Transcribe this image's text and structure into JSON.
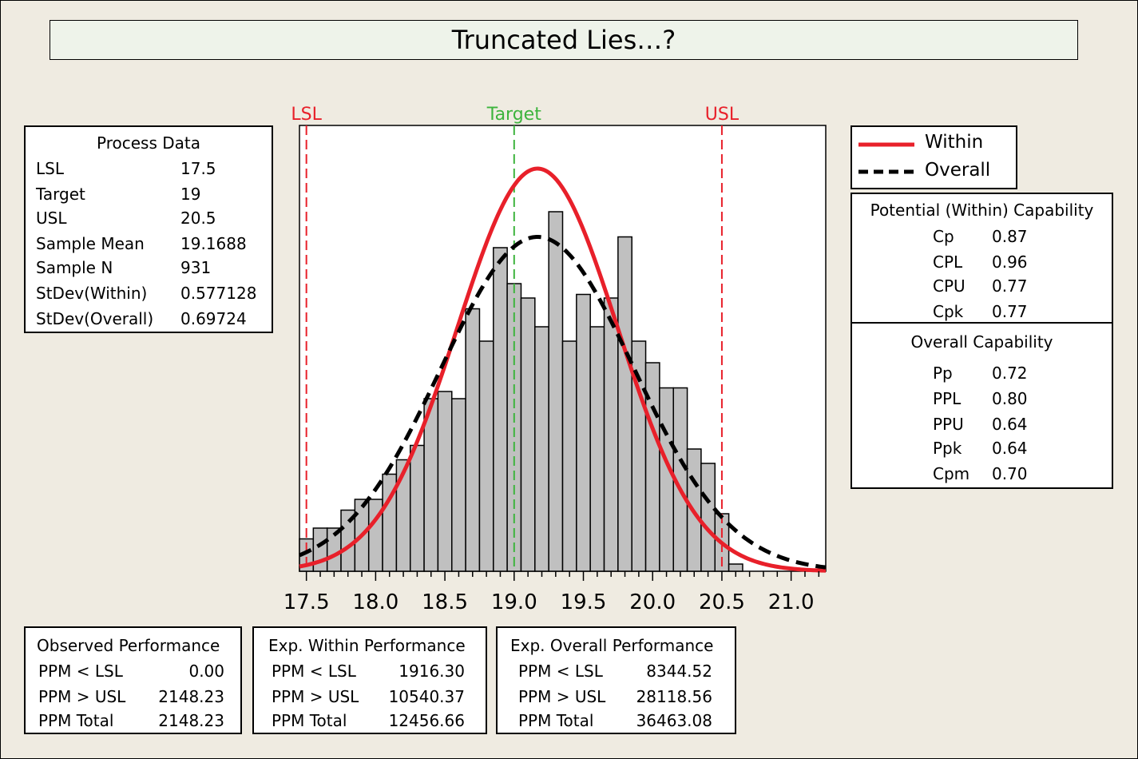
{
  "title": "Truncated Lies…?",
  "process_data": {
    "header": "Process Data",
    "rows": [
      {
        "label": "LSL",
        "value": "17.5"
      },
      {
        "label": "Target",
        "value": "19"
      },
      {
        "label": "USL",
        "value": "20.5"
      },
      {
        "label": "Sample Mean",
        "value": "19.1688"
      },
      {
        "label": "Sample N",
        "value": "931"
      },
      {
        "label": "StDev(Within)",
        "value": "0.577128"
      },
      {
        "label": "StDev(Overall)",
        "value": "0.69724"
      }
    ]
  },
  "legend": {
    "within": "Within",
    "overall": "Overall"
  },
  "potential": {
    "header": "Potential (Within) Capability",
    "rows": [
      {
        "label": "Cp",
        "value": "0.87"
      },
      {
        "label": "CPL",
        "value": "0.96"
      },
      {
        "label": "CPU",
        "value": "0.77"
      },
      {
        "label": "Cpk",
        "value": "0.77"
      }
    ]
  },
  "overall_cap": {
    "header": "Overall Capability",
    "rows": [
      {
        "label": "Pp",
        "value": "0.72"
      },
      {
        "label": "PPL",
        "value": "0.80"
      },
      {
        "label": "PPU",
        "value": "0.64"
      },
      {
        "label": "Ppk",
        "value": "0.64"
      },
      {
        "label": "Cpm",
        "value": "0.70"
      }
    ]
  },
  "observed": {
    "header": "Observed Performance",
    "rows": [
      {
        "label": "PPM < LSL",
        "value": "0.00"
      },
      {
        "label": "PPM > USL",
        "value": "2148.23"
      },
      {
        "label": "PPM Total",
        "value": "2148.23"
      }
    ]
  },
  "exp_within": {
    "header": "Exp. Within Performance",
    "rows": [
      {
        "label": "PPM < LSL",
        "value": "1916.30"
      },
      {
        "label": "PPM > USL",
        "value": "10540.37"
      },
      {
        "label": "PPM Total",
        "value": "12456.66"
      }
    ]
  },
  "exp_overall": {
    "header": "Exp. Overall Performance",
    "rows": [
      {
        "label": "PPM < LSL",
        "value": "8344.52"
      },
      {
        "label": "PPM > USL",
        "value": "28118.56"
      },
      {
        "label": "PPM Total",
        "value": "36463.08"
      }
    ]
  },
  "colors": {
    "spec_line": "#e8202a",
    "target_line": "#3db43d",
    "within_curve": "#e8202a",
    "overall_curve": "#000000",
    "bar_fill": "#c0c0c0"
  },
  "chart_data": {
    "type": "bar",
    "subtype": "histogram",
    "bin_width": 0.1,
    "xlim": [
      17.45,
      21.25
    ],
    "ylim": [
      0,
      1
    ],
    "x_ticks": [
      17.5,
      18.0,
      18.5,
      19.0,
      19.5,
      20.0,
      20.5,
      21.0
    ],
    "x_tick_labels": [
      "17.5",
      "18.0",
      "18.5",
      "19.0",
      "19.5",
      "20.0",
      "20.5",
      "21.0"
    ],
    "bin_starts": [
      17.45,
      17.55,
      17.65,
      17.75,
      17.85,
      17.95,
      18.05,
      18.15,
      18.25,
      18.35,
      18.45,
      18.55,
      18.65,
      18.75,
      18.85,
      18.95,
      19.05,
      19.15,
      19.25,
      19.35,
      19.45,
      19.55,
      19.65,
      19.75,
      19.85,
      19.95,
      20.05,
      20.15,
      20.25,
      20.35,
      20.45,
      20.55
    ],
    "relative_heights": [
      0.09,
      0.12,
      0.12,
      0.17,
      0.2,
      0.2,
      0.27,
      0.31,
      0.35,
      0.48,
      0.5,
      0.48,
      0.73,
      0.64,
      0.9,
      0.8,
      0.76,
      0.68,
      1.0,
      0.64,
      0.77,
      0.68,
      0.76,
      0.93,
      0.64,
      0.58,
      0.51,
      0.51,
      0.34,
      0.3,
      0.16,
      0.02
    ],
    "spec_lines": {
      "LSL": 17.5,
      "Target": 19,
      "USL": 20.5
    },
    "spec_labels": {
      "LSL": "LSL",
      "Target": "Target",
      "USL": "USL"
    },
    "curves": [
      {
        "name": "Within",
        "mean": 19.1688,
        "stdev": 0.577128,
        "peak": 1.12
      },
      {
        "name": "Overall",
        "mean": 19.1688,
        "stdev": 0.69724,
        "peak": 0.93
      }
    ]
  }
}
